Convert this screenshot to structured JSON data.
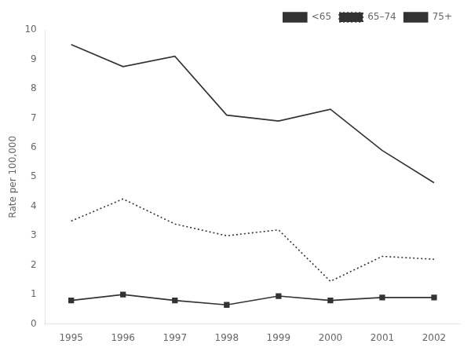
{
  "chart_data": {
    "type": "line",
    "x": [
      1995,
      1996,
      1997,
      1998,
      1999,
      2000,
      2001,
      2002
    ],
    "series": [
      {
        "name": "<65",
        "color": "#333333",
        "marker": "square",
        "line_style": "solid",
        "values": [
          0.8,
          1.0,
          0.8,
          0.65,
          0.95,
          0.8,
          0.9,
          0.9
        ]
      },
      {
        "name": "65–74",
        "color": "#333333",
        "marker": "none",
        "line_style": "dotted",
        "values": [
          3.5,
          4.25,
          3.4,
          3.0,
          3.2,
          1.45,
          2.3,
          2.2
        ]
      },
      {
        "name": "75+",
        "color": "#333333",
        "marker": "none",
        "line_style": "solid",
        "values": [
          9.5,
          8.75,
          9.1,
          7.1,
          6.9,
          7.3,
          5.9,
          4.8
        ]
      }
    ],
    "ylabel": "Rate per 100,000",
    "xlim": [
      1994.5,
      2002.5
    ],
    "xticks": [
      1995,
      1996,
      1997,
      1998,
      1999,
      2000,
      2001,
      2002
    ],
    "ylim": [
      0,
      10
    ],
    "yticks": [
      0,
      1,
      2,
      3,
      4,
      5,
      6,
      7,
      8,
      9,
      10
    ],
    "grid": false,
    "legend": "upper right"
  }
}
